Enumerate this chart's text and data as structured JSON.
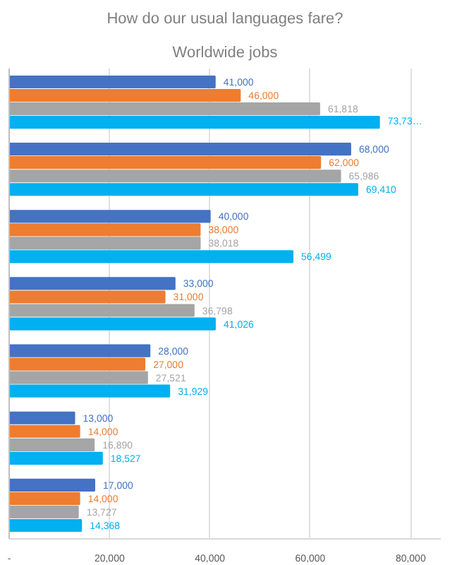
{
  "chart_data": {
    "type": "bar",
    "orientation": "horizontal",
    "title": "How do our usual languages fare?",
    "subtitle": "Worldwide jobs",
    "categories": [
      null,
      null,
      null,
      null,
      null,
      null,
      null
    ],
    "series": [
      {
        "color": "#4472c4",
        "values": [
          41000,
          68000,
          40000,
          33000,
          28000,
          13000,
          17000
        ],
        "value_labels": [
          "41,000",
          "68,000",
          "40,000",
          "33,000",
          "28,000",
          "13,000",
          "17,000"
        ]
      },
      {
        "color": "#ed7d31",
        "values": [
          46000,
          62000,
          38000,
          31000,
          27000,
          14000,
          14000
        ],
        "value_labels": [
          "46,000",
          "62,000",
          "38,000",
          "31,000",
          "27,000",
          "14,000",
          "14,000"
        ]
      },
      {
        "color": "#a5a5a5",
        "values": [
          61818,
          65986,
          38018,
          36798,
          27521,
          16890,
          13727
        ],
        "value_labels": [
          "61,818",
          "65,986",
          "38,018",
          "36,798",
          "27,521",
          "16,890",
          "13,727"
        ]
      },
      {
        "color": "#00b0f0",
        "values": [
          73730,
          69410,
          56499,
          41026,
          31929,
          18527,
          14368
        ],
        "value_labels": [
          "73,73…",
          "69,410",
          "56,499",
          "41,026",
          "31,929",
          "18,527",
          "14,368"
        ]
      }
    ],
    "xlim": [
      0,
      86000
    ],
    "xticks": [
      {
        "value": 0,
        "label": "-"
      },
      {
        "value": 20000,
        "label": "20,000"
      },
      {
        "value": 40000,
        "label": "40,000"
      },
      {
        "value": 60000,
        "label": "60,000"
      },
      {
        "value": 80000,
        "label": "80,000"
      }
    ],
    "grid": "x"
  }
}
